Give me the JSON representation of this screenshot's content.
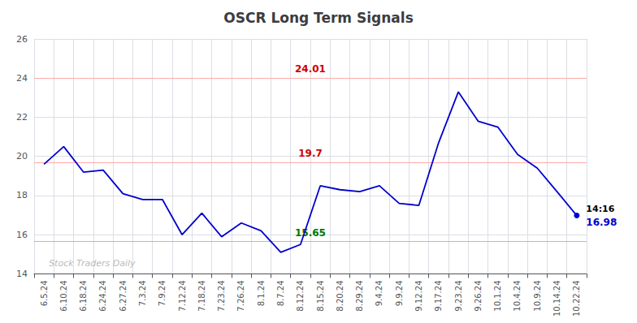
{
  "chart_data": {
    "type": "line",
    "title": "OSCR Long Term Signals",
    "categories": [
      "6.5.24",
      "6.10.24",
      "6.18.24",
      "6.24.24",
      "6.27.24",
      "7.3.24",
      "7.9.24",
      "7.12.24",
      "7.18.24",
      "7.23.24",
      "7.26.24",
      "8.1.24",
      "8.7.24",
      "8.12.24",
      "8.15.24",
      "8.20.24",
      "8.29.24",
      "9.4.24",
      "9.9.24",
      "9.12.24",
      "9.17.24",
      "9.23.24",
      "9.26.24",
      "10.1.24",
      "10.4.24",
      "10.9.24",
      "10.14.24",
      "10.22.24"
    ],
    "values": [
      19.6,
      20.5,
      19.2,
      19.3,
      18.1,
      17.8,
      17.8,
      16.0,
      17.1,
      15.9,
      16.6,
      16.2,
      15.1,
      15.5,
      18.5,
      18.3,
      18.2,
      18.5,
      17.6,
      17.5,
      20.7,
      23.3,
      21.8,
      21.5,
      20.1,
      19.4,
      18.2,
      16.98
    ],
    "color": "#0000cc",
    "ylim": [
      14,
      26
    ],
    "yticks": [
      14,
      16,
      18,
      20,
      22,
      24,
      26
    ],
    "grid": true,
    "reference_lines": [
      {
        "value": 24.01,
        "label": "24.01",
        "color": "#ffaaaa",
        "label_color": "#cc0000"
      },
      {
        "value": 19.7,
        "label": "19.7",
        "color": "#ffaaaa",
        "label_color": "#cc0000"
      },
      {
        "value": 15.65,
        "label": "15.65",
        "color": "#88dd88",
        "label_color": "#007700"
      }
    ],
    "last_point_annotations": [
      {
        "text": "14:16",
        "color": "#000000"
      },
      {
        "text": "16.98",
        "color": "#0000cc"
      }
    ],
    "watermark": {
      "text": "Stock Traders Daily",
      "color": "#bbbbbb"
    }
  }
}
